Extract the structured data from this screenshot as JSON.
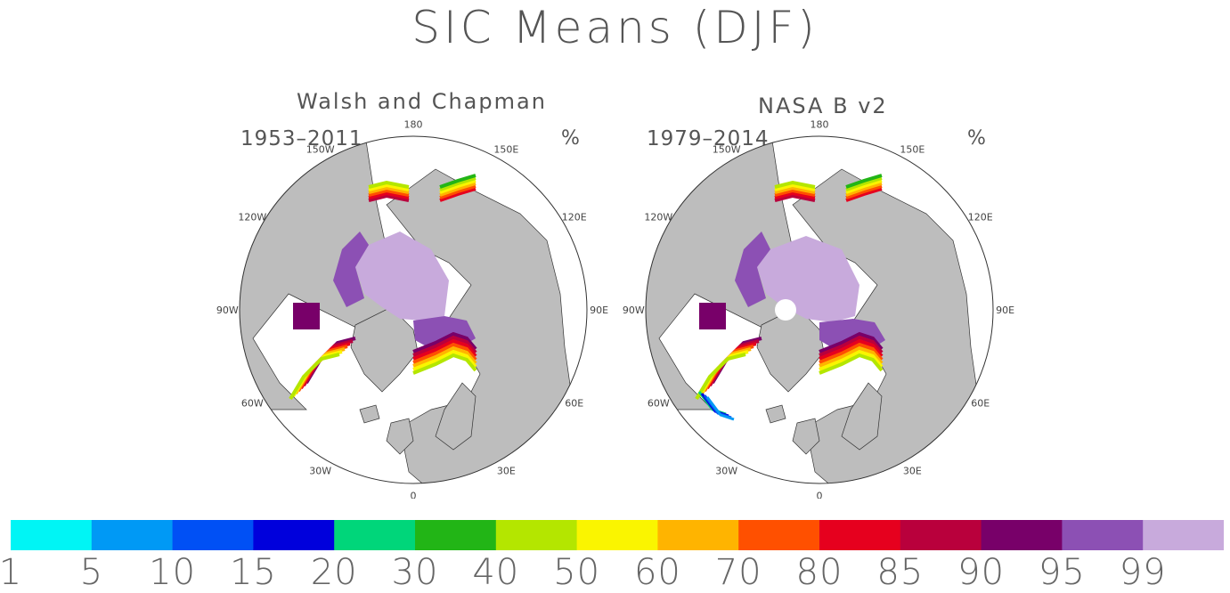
{
  "chart_data": {
    "type": "heatmap",
    "title": "SIC Means (DJF)",
    "unit": "%",
    "projection": "north-polar-stereographic",
    "longitude_labels": [
      "180",
      "150W",
      "150E",
      "120W",
      "120E",
      "90W",
      "90E",
      "60W",
      "60E",
      "30W",
      "30E",
      "0"
    ],
    "panels": [
      {
        "title": "Walsh and Chapman",
        "period": "1953–2011",
        "unit": "%"
      },
      {
        "title": "NASA B v2",
        "period": "1979–2014",
        "unit": "%"
      }
    ],
    "colorbar": {
      "levels": [
        "1",
        "5",
        "10",
        "15",
        "20",
        "30",
        "40",
        "50",
        "60",
        "70",
        "80",
        "85",
        "90",
        "95",
        "99"
      ],
      "colors": [
        "#00f5f5",
        "#0099f5",
        "#0050f5",
        "#0000dc",
        "#00d67a",
        "#22b516",
        "#b4e600",
        "#faf500",
        "#ffb400",
        "#ff5000",
        "#e6001e",
        "#b9003c",
        "#780069",
        "#8c50b4",
        "#c8aadc"
      ]
    },
    "colors": {
      "land": "#bdbdbd",
      "ocean": "#ffffff",
      "outline": "#333333"
    }
  }
}
